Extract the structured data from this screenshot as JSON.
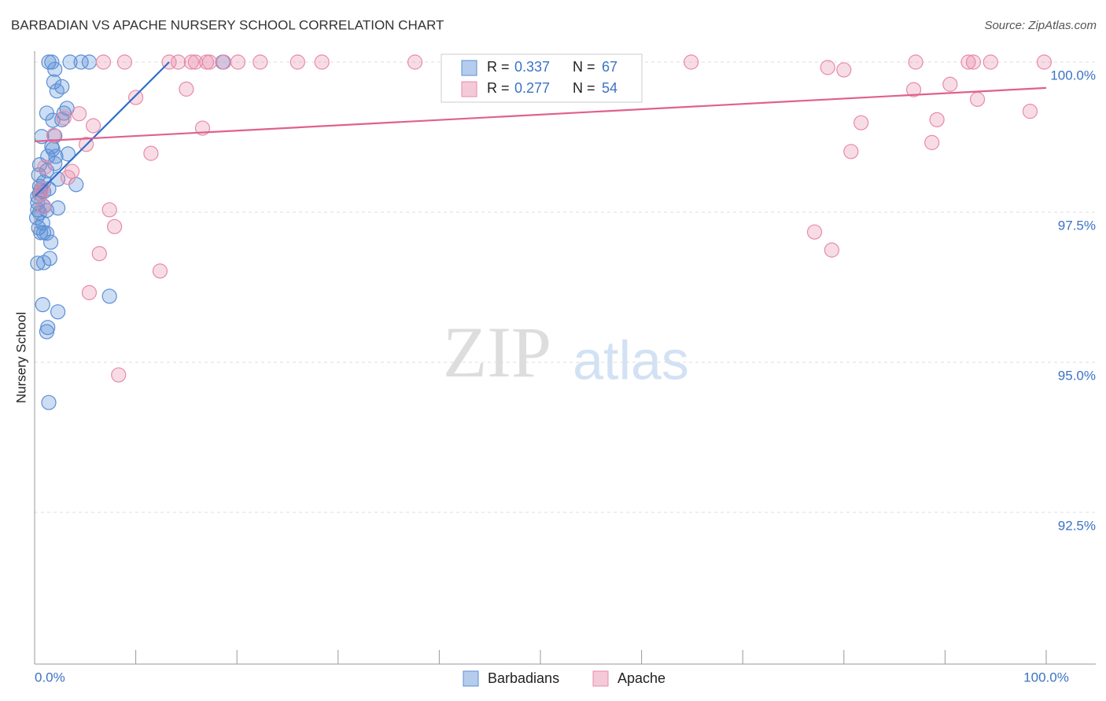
{
  "chart_data": {
    "type": "scatter",
    "title": "BARBADIAN VS APACHE NURSERY SCHOOL CORRELATION CHART",
    "source": "Source: ZipAtlas.com",
    "y_label": "Nursery School",
    "watermark": [
      "ZIP",
      "atlas"
    ],
    "stat_labels": [
      "R =",
      "N ="
    ],
    "xlim": [
      0,
      100
    ],
    "ylim": [
      90,
      100.2
    ],
    "xticks": [
      {
        "value": 0,
        "label": "0.0%"
      },
      {
        "value": 10,
        "label": null
      },
      {
        "value": 20,
        "label": null
      },
      {
        "value": 30,
        "label": null
      },
      {
        "value": 40,
        "label": null
      },
      {
        "value": 50,
        "label": null
      },
      {
        "value": 60,
        "label": null
      },
      {
        "value": 70,
        "label": null
      },
      {
        "value": 80,
        "label": null
      },
      {
        "value": 90,
        "label": null
      },
      {
        "value": 100,
        "label": "100.0%"
      }
    ],
    "yticks": [
      {
        "value": 100,
        "label": "100.0%"
      },
      {
        "value": 97.5,
        "label": "97.5%"
      },
      {
        "value": 95,
        "label": "95.0%"
      },
      {
        "value": 92.5,
        "label": "92.5%"
      }
    ],
    "grid": true,
    "series": [
      {
        "name": "Barbadians",
        "color": "#5b8fd6",
        "line_color": "#2f6fcc",
        "r": 0.337,
        "n": 67,
        "x": [
          1.4,
          1.7,
          3.5,
          4.6,
          5.4,
          18.6,
          2.0,
          1.9,
          2.7,
          2.2,
          3.2,
          1.2,
          2.9,
          1.8,
          2.7,
          0.7,
          2.0,
          1.7,
          1.8,
          3.3,
          1.3,
          2.1,
          0.5,
          2.0,
          0.4,
          1.2,
          2.3,
          4.1,
          0.5,
          1.4,
          0.9,
          0.5,
          0.6,
          0.3,
          0.9,
          0.3,
          1.2,
          2.3,
          0.5,
          0.2,
          0.8,
          0.4,
          1.2,
          0.6,
          0.9,
          1.6,
          1.5,
          0.3,
          0.9,
          7.4,
          0.8,
          2.3,
          1.3,
          1.2,
          1.4,
          0.3,
          0.9
        ],
        "y": [
          100,
          100,
          100,
          100,
          100,
          100,
          99.88,
          99.67,
          99.59,
          99.52,
          99.23,
          99.15,
          99.15,
          99.03,
          99.04,
          98.76,
          98.77,
          98.59,
          98.55,
          98.47,
          98.43,
          98.43,
          98.29,
          98.31,
          98.12,
          98.19,
          98.05,
          97.96,
          97.93,
          97.89,
          97.84,
          97.81,
          97.87,
          97.66,
          97.6,
          97.54,
          97.53,
          97.57,
          97.49,
          97.41,
          97.32,
          97.24,
          97.15,
          97.16,
          97.16,
          97.0,
          96.73,
          96.65,
          96.66,
          96.1,
          95.96,
          95.84,
          95.58,
          95.51,
          94.33,
          97.76,
          98.0
        ],
        "trend": {
          "x": [
            0,
            13.3
          ],
          "y": [
            97.76,
            100
          ]
        }
      },
      {
        "name": "Apache",
        "color": "#e88aa8",
        "line_color": "#e0608f",
        "r": 0.277,
        "n": 54,
        "x": [
          13.3,
          14.2,
          15.5,
          15.9,
          17.0,
          17.3,
          18.7,
          20.1,
          22.3,
          26.0,
          28.4,
          37.6,
          64.9,
          87.1,
          92.3,
          92.8,
          94.5,
          99.8,
          6.8,
          8.9,
          78.4,
          80.0,
          15.0,
          90.5,
          86.9,
          10.0,
          93.2,
          4.4,
          2.9,
          98.4,
          5.8,
          16.6,
          81.7,
          89.2,
          1.9,
          5.1,
          11.5,
          80.7,
          88.7,
          3.7,
          1.0,
          3.3,
          0.8,
          0.6,
          7.4,
          0.9,
          7.9,
          77.1,
          6.4,
          78.8,
          12.4,
          5.4,
          8.3
        ],
        "y": [
          100,
          100,
          100,
          100,
          100,
          100,
          100,
          100,
          100,
          100,
          100,
          100,
          100,
          100,
          100,
          100,
          100,
          100,
          100,
          100,
          99.91,
          99.87,
          99.55,
          99.63,
          99.54,
          99.41,
          99.38,
          99.14,
          99.07,
          99.18,
          98.94,
          98.9,
          98.99,
          99.04,
          98.78,
          98.63,
          98.48,
          98.51,
          98.66,
          98.18,
          98.25,
          98.08,
          97.89,
          97.81,
          97.54,
          97.59,
          97.26,
          97.17,
          96.81,
          96.87,
          96.52,
          96.16,
          94.79
        ],
        "trend": {
          "x": [
            0,
            100
          ],
          "y": [
            98.68,
            99.57
          ]
        }
      }
    ]
  }
}
